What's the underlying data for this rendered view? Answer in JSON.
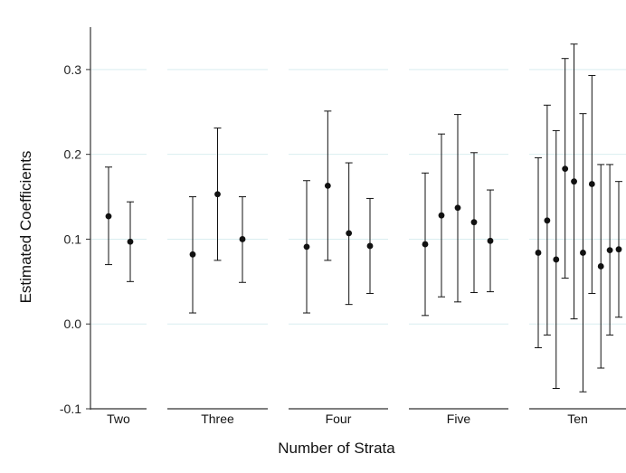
{
  "chart_data": {
    "type": "scatter",
    "subtype": "point-with-error-bars-facets",
    "title": "",
    "xlabel": "Number of Strata",
    "ylabel": "Estimated Coefficients",
    "ylim": [
      -0.1,
      0.35
    ],
    "yticks": [
      -0.1,
      0.0,
      0.1,
      0.2,
      0.3
    ],
    "ytick_labels": [
      "-0.1",
      "0.0",
      "0.1",
      "0.2",
      "0.3"
    ],
    "grid": "horizontal",
    "colors": {
      "grid": "#d9eef0",
      "marks": "#111111",
      "axis": "#333333"
    },
    "facets": [
      {
        "label": "Two",
        "points": [
          {
            "estimate": 0.127,
            "low": 0.07,
            "high": 0.185
          },
          {
            "estimate": 0.097,
            "low": 0.05,
            "high": 0.144
          }
        ]
      },
      {
        "label": "Three",
        "points": [
          {
            "estimate": 0.082,
            "low": 0.013,
            "high": 0.15
          },
          {
            "estimate": 0.153,
            "low": 0.075,
            "high": 0.231
          },
          {
            "estimate": 0.1,
            "low": 0.049,
            "high": 0.15
          }
        ]
      },
      {
        "label": "Four",
        "points": [
          {
            "estimate": 0.091,
            "low": 0.013,
            "high": 0.169
          },
          {
            "estimate": 0.163,
            "low": 0.075,
            "high": 0.251
          },
          {
            "estimate": 0.107,
            "low": 0.023,
            "high": 0.19
          },
          {
            "estimate": 0.092,
            "low": 0.036,
            "high": 0.148
          }
        ]
      },
      {
        "label": "Five",
        "points": [
          {
            "estimate": 0.094,
            "low": 0.01,
            "high": 0.178
          },
          {
            "estimate": 0.128,
            "low": 0.032,
            "high": 0.224
          },
          {
            "estimate": 0.137,
            "low": 0.026,
            "high": 0.247
          },
          {
            "estimate": 0.12,
            "low": 0.037,
            "high": 0.202
          },
          {
            "estimate": 0.098,
            "low": 0.038,
            "high": 0.158
          }
        ]
      },
      {
        "label": "Ten",
        "points": [
          {
            "estimate": 0.084,
            "low": -0.028,
            "high": 0.196
          },
          {
            "estimate": 0.122,
            "low": -0.013,
            "high": 0.258
          },
          {
            "estimate": 0.076,
            "low": -0.076,
            "high": 0.228
          },
          {
            "estimate": 0.183,
            "low": 0.054,
            "high": 0.313
          },
          {
            "estimate": 0.168,
            "low": 0.006,
            "high": 0.33
          },
          {
            "estimate": 0.084,
            "low": -0.08,
            "high": 0.248
          },
          {
            "estimate": 0.165,
            "low": 0.036,
            "high": 0.293
          },
          {
            "estimate": 0.068,
            "low": -0.052,
            "high": 0.188
          },
          {
            "estimate": 0.087,
            "low": -0.013,
            "high": 0.188
          },
          {
            "estimate": 0.088,
            "low": 0.008,
            "high": 0.168
          }
        ]
      }
    ]
  }
}
